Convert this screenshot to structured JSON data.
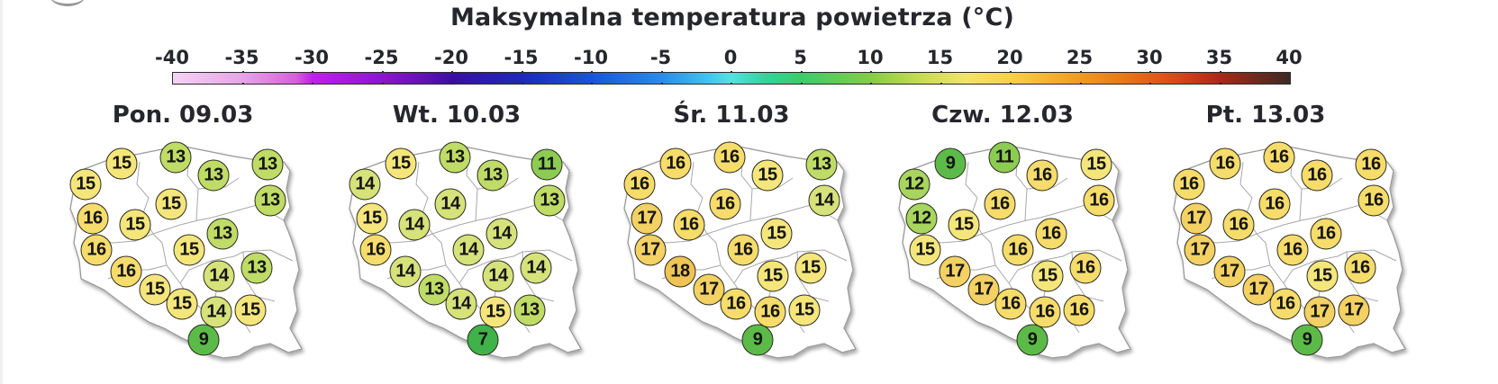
{
  "title": "Maksymalna temperatura powietrza (°C)",
  "colorbar": {
    "ticks": [
      "-40",
      "-35",
      "-30",
      "-25",
      "-20",
      "-15",
      "-10",
      "-5",
      "0",
      "5",
      "10",
      "15",
      "20",
      "25",
      "30",
      "35",
      "40"
    ],
    "min": -40,
    "max": 40
  },
  "colors": {
    "t7": "#3fb24a",
    "t9": "#5cbb48",
    "t11": "#8ccc52",
    "t12": "#a8d55e",
    "t13": "#bfdc66",
    "t14": "#d6e27a",
    "t15": "#f5e67c",
    "t16": "#f6dc6b",
    "t17": "#f3d162",
    "t18": "#efc455"
  },
  "days": [
    {
      "label": "Pon. 09.03",
      "values": [
        "15",
        "15",
        "13",
        "13",
        "13",
        "13",
        "16",
        "15",
        "15",
        "13",
        "16",
        "15",
        "14",
        "13",
        "16",
        "15",
        "15",
        "14",
        "15",
        "9"
      ]
    },
    {
      "label": "Wt. 10.03",
      "values": [
        "14",
        "15",
        "13",
        "13",
        "11",
        "13",
        "15",
        "14",
        "14",
        "14",
        "16",
        "14",
        "14",
        "14",
        "14",
        "13",
        "14",
        "15",
        "13",
        "7"
      ]
    },
    {
      "label": "Śr. 11.03",
      "values": [
        "16",
        "16",
        "16",
        "15",
        "13",
        "14",
        "17",
        "16",
        "16",
        "15",
        "17",
        "16",
        "15",
        "15",
        "18",
        "17",
        "16",
        "16",
        "15",
        "9"
      ]
    },
    {
      "label": "Czw. 12.03",
      "values": [
        "12",
        "9",
        "11",
        "16",
        "15",
        "16",
        "12",
        "15",
        "16",
        "16",
        "15",
        "16",
        "15",
        "16",
        "17",
        "17",
        "16",
        "16",
        "16",
        "9"
      ]
    },
    {
      "label": "Pt. 13.03",
      "values": [
        "16",
        "16",
        "16",
        "16",
        "16",
        "16",
        "17",
        "16",
        "16",
        "16",
        "17",
        "16",
        "15",
        "16",
        "17",
        "17",
        "16",
        "17",
        "17",
        "9"
      ]
    }
  ]
}
